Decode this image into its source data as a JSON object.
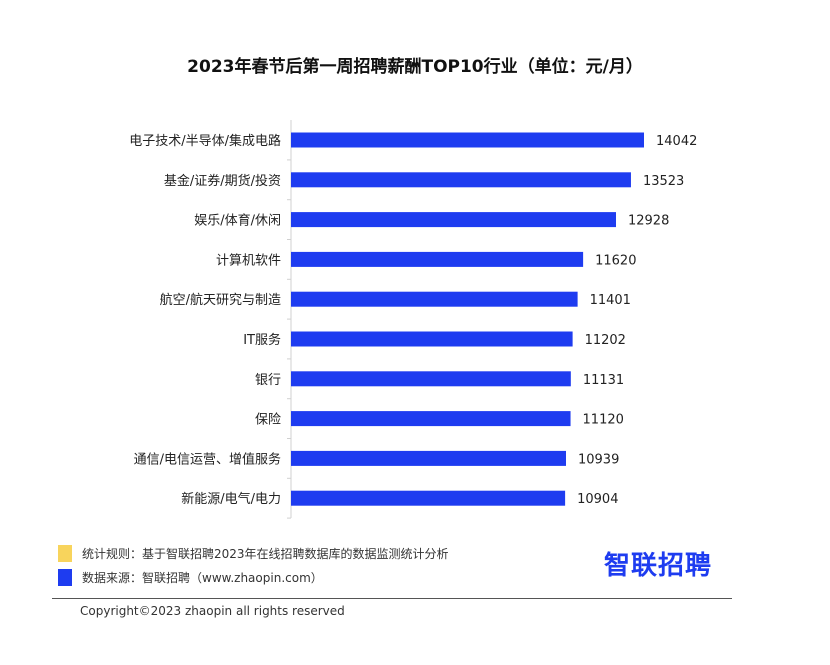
{
  "chart_data": {
    "type": "bar",
    "orientation": "horizontal",
    "title": "2023年春节后第一周招聘薪酬TOP10行业（单位：元/月）",
    "categories": [
      "电子技术/半导体/集成电路",
      "基金/证券/期货/投资",
      "娱乐/体育/休闲",
      "计算机软件",
      "航空/航天研究与制造",
      "IT服务",
      "银行",
      "保险",
      "通信/电信运营、增值服务",
      "新能源/电气/电力"
    ],
    "values": [
      14042,
      13523,
      12928,
      11620,
      11401,
      11202,
      11131,
      11120,
      10939,
      10904
    ],
    "xlabel": "",
    "ylabel": "",
    "bar_color": "#1e3cf0"
  },
  "legend": {
    "rule_swatch_color": "#f8d45c",
    "rule_text": "统计规则：基于智联招聘2023年在线招聘数据库的数据监测统计分析",
    "source_swatch_color": "#1e3cf0",
    "source_text": "数据来源：智联招聘（www.zhaopin.com）"
  },
  "brand": {
    "logo_text": "智联招聘"
  },
  "footer": {
    "copyright": "Copyright©2023 zhaopin all rights reserved"
  }
}
